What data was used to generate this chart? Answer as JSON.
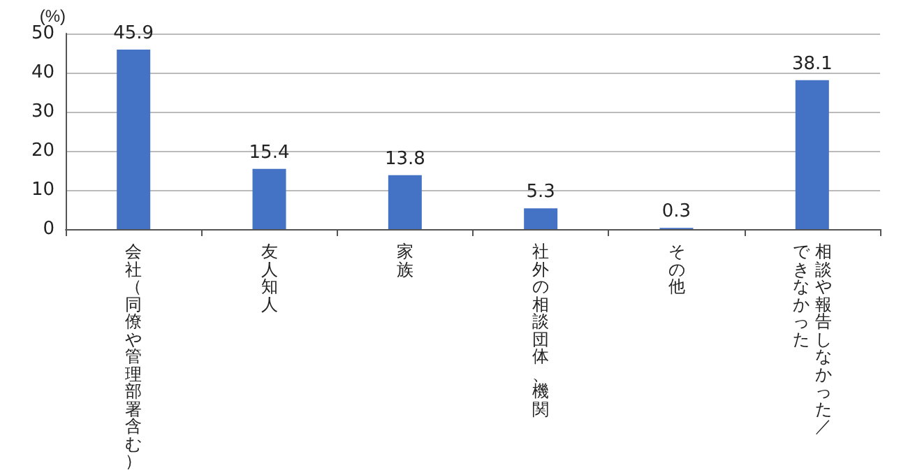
{
  "chart_data": {
    "type": "bar",
    "ylabel": "(%)",
    "categories": [
      "会社（同僚や管理部署含む）",
      "友人知人",
      "家族",
      "社外の相談団体、機関",
      "その他",
      "相談や報告しなかった／できなかった"
    ],
    "values": [
      45.9,
      15.4,
      13.8,
      5.3,
      0.3,
      38.1
    ],
    "color": "#4472c4",
    "ylim": [
      0,
      50
    ],
    "yticks": [
      0,
      10,
      20,
      30,
      40,
      50
    ],
    "grid": "y",
    "data_labels": true
  }
}
